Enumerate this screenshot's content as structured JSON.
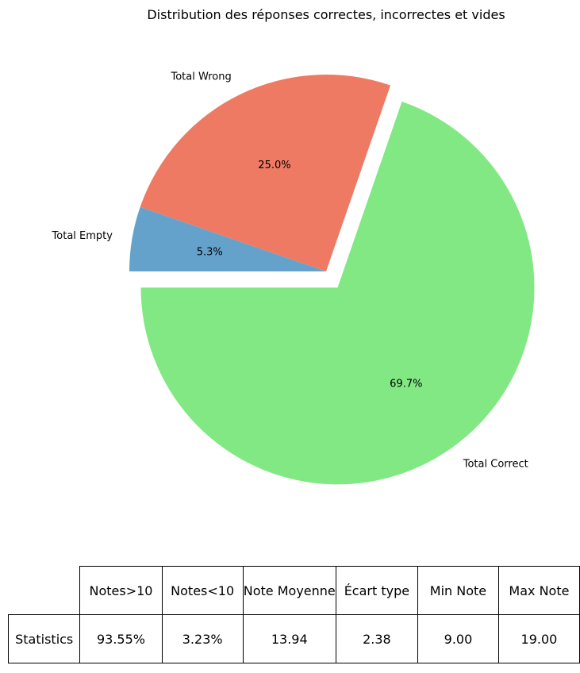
{
  "chart_data": {
    "type": "pie",
    "title": "Distribution des réponses correctes, incorrectes et vides",
    "slices": [
      {
        "label": "Total Correct",
        "value": 69.7,
        "pct_label": "69.7%",
        "color": "#81e884",
        "explode": true
      },
      {
        "label": "Total Wrong",
        "value": 25.0,
        "pct_label": "25.0%",
        "color": "#ee7a63",
        "explode": false
      },
      {
        "label": "Total Empty",
        "value": 5.3,
        "pct_label": "5.3%",
        "color": "#64a2cc",
        "explode": false
      }
    ],
    "start_angle_deg": 180
  },
  "table": {
    "headers": [
      "Notes>10",
      "Notes<10",
      "Note Moyenne",
      "Écart type",
      "Min Note",
      "Max Note"
    ],
    "row_label": "Statistics",
    "values": [
      "93.55%",
      "3.23%",
      "13.94",
      "2.38",
      "9.00",
      "19.00"
    ]
  }
}
